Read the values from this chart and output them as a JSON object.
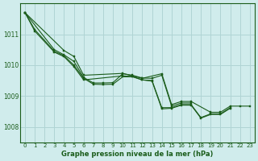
{
  "title": "Graphe pression niveau de la mer (hPa)",
  "background_color": "#d0ecec",
  "plot_bg_color": "#d0ecec",
  "grid_color": "#b0d4d4",
  "line_color": "#1a5c1a",
  "xlim": [
    -0.5,
    23.5
  ],
  "ylim": [
    1007.5,
    1012.0
  ],
  "yticks": [
    1008,
    1009,
    1010,
    1011
  ],
  "xticks": [
    0,
    1,
    2,
    3,
    4,
    5,
    6,
    7,
    8,
    9,
    10,
    11,
    12,
    13,
    14,
    15,
    16,
    17,
    18,
    19,
    20,
    21,
    22,
    23
  ],
  "series": [
    {
      "x": [
        0,
        1,
        3,
        4,
        5,
        6,
        7,
        8,
        9,
        10,
        11,
        12,
        13,
        14,
        15,
        16,
        17,
        18,
        19,
        20,
        21
      ],
      "y": [
        1011.7,
        1011.15,
        1010.45,
        1010.3,
        1010.0,
        1009.57,
        1009.38,
        1009.37,
        1009.38,
        1009.62,
        1009.62,
        1009.52,
        1009.5,
        1008.62,
        1008.62,
        1008.72,
        1008.72,
        1008.3,
        1008.42,
        1008.42,
        1008.62
      ]
    },
    {
      "x": [
        0,
        1,
        3,
        4,
        5,
        6,
        10,
        11,
        12,
        13,
        14,
        15,
        16,
        17,
        18,
        19,
        20,
        21
      ],
      "y": [
        1011.7,
        1011.1,
        1010.42,
        1010.27,
        1009.95,
        1009.52,
        1009.65,
        1009.63,
        1009.52,
        1009.48,
        1008.58,
        1008.6,
        1008.7,
        1008.7,
        1008.28,
        1008.4,
        1008.4,
        1008.6
      ]
    },
    {
      "x": [
        0,
        3,
        4,
        5,
        6,
        7,
        8,
        9,
        10,
        11,
        12,
        13,
        14,
        15,
        16,
        17
      ],
      "y": [
        1011.7,
        1010.5,
        1010.33,
        1010.12,
        1009.6,
        1009.42,
        1009.42,
        1009.43,
        1009.72,
        1009.67,
        1009.58,
        1009.57,
        1009.67,
        1008.67,
        1008.77,
        1008.77
      ]
    },
    {
      "x": [
        0,
        4,
        5,
        6,
        10,
        12,
        14,
        15,
        16,
        17,
        19,
        20,
        21,
        22,
        23
      ],
      "y": [
        1011.7,
        1010.47,
        1010.28,
        1009.67,
        1009.73,
        1009.57,
        1009.72,
        1008.72,
        1008.82,
        1008.82,
        1008.47,
        1008.47,
        1008.67,
        1008.67,
        1008.67
      ]
    }
  ]
}
